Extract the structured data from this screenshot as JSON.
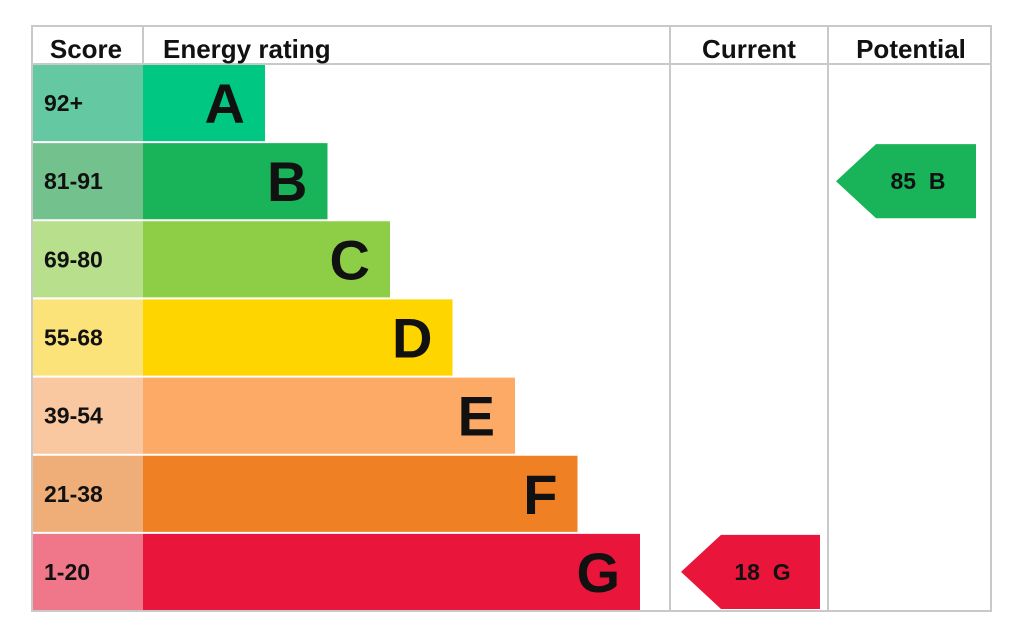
{
  "chart_data": {
    "type": "table",
    "headers": {
      "score": "Score",
      "rating": "Energy rating",
      "current": "Current",
      "potential": "Potential"
    },
    "bands": [
      {
        "letter": "A",
        "range": "92+",
        "color": "#00c781",
        "score_color": "#64c9a3"
      },
      {
        "letter": "B",
        "range": "81-91",
        "color": "#19b459",
        "score_color": "#73c28e"
      },
      {
        "letter": "C",
        "range": "69-80",
        "color": "#8dce46",
        "score_color": "#b7df8c"
      },
      {
        "letter": "D",
        "range": "55-68",
        "color": "#ffd500",
        "score_color": "#fbe37a"
      },
      {
        "letter": "E",
        "range": "39-54",
        "color": "#fcaa65",
        "score_color": "#f9c8a1"
      },
      {
        "letter": "F",
        "range": "21-38",
        "color": "#ef8023",
        "score_color": "#efae77"
      },
      {
        "letter": "G",
        "range": "1-20",
        "color": "#e9153b",
        "score_color": "#f0768a"
      }
    ],
    "current": {
      "value": 18,
      "band": "G",
      "label": "18  G",
      "color": "#e9153b"
    },
    "potential": {
      "value": 85,
      "band": "B",
      "label": "85  B",
      "color": "#19b459"
    }
  }
}
